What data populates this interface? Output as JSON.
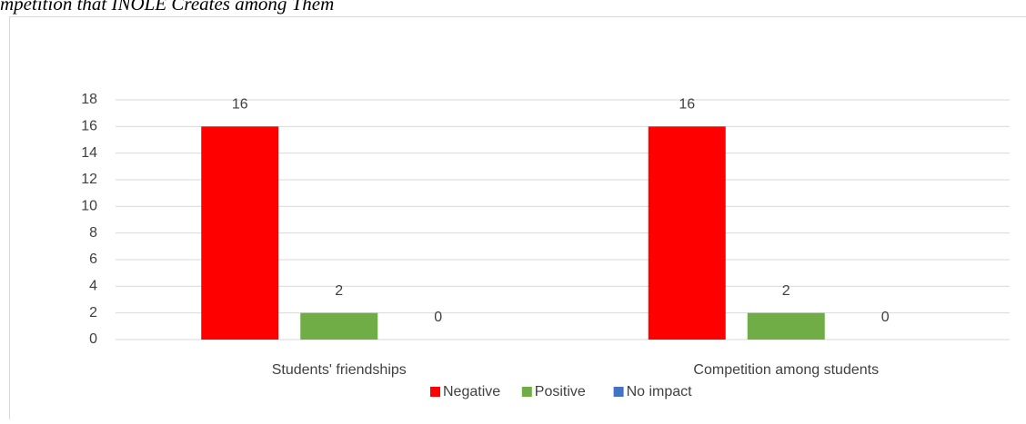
{
  "caption": "mpetition that INOLE Creates among Them",
  "chart_data": {
    "type": "bar",
    "categories": [
      "Students' friendships",
      "Competition among students"
    ],
    "series": [
      {
        "name": "Negative",
        "color": "#ff0000",
        "values": [
          16,
          16
        ]
      },
      {
        "name": "Positive",
        "color": "#70ad47",
        "values": [
          2,
          2
        ]
      },
      {
        "name": "No impact",
        "color": "#4472c4",
        "values": [
          0,
          0
        ]
      }
    ],
    "ylim": [
      0,
      18
    ],
    "yticks": [
      0,
      2,
      4,
      6,
      8,
      10,
      12,
      14,
      16,
      18
    ],
    "grid": true,
    "legend": "bottom",
    "data_labels": true
  }
}
